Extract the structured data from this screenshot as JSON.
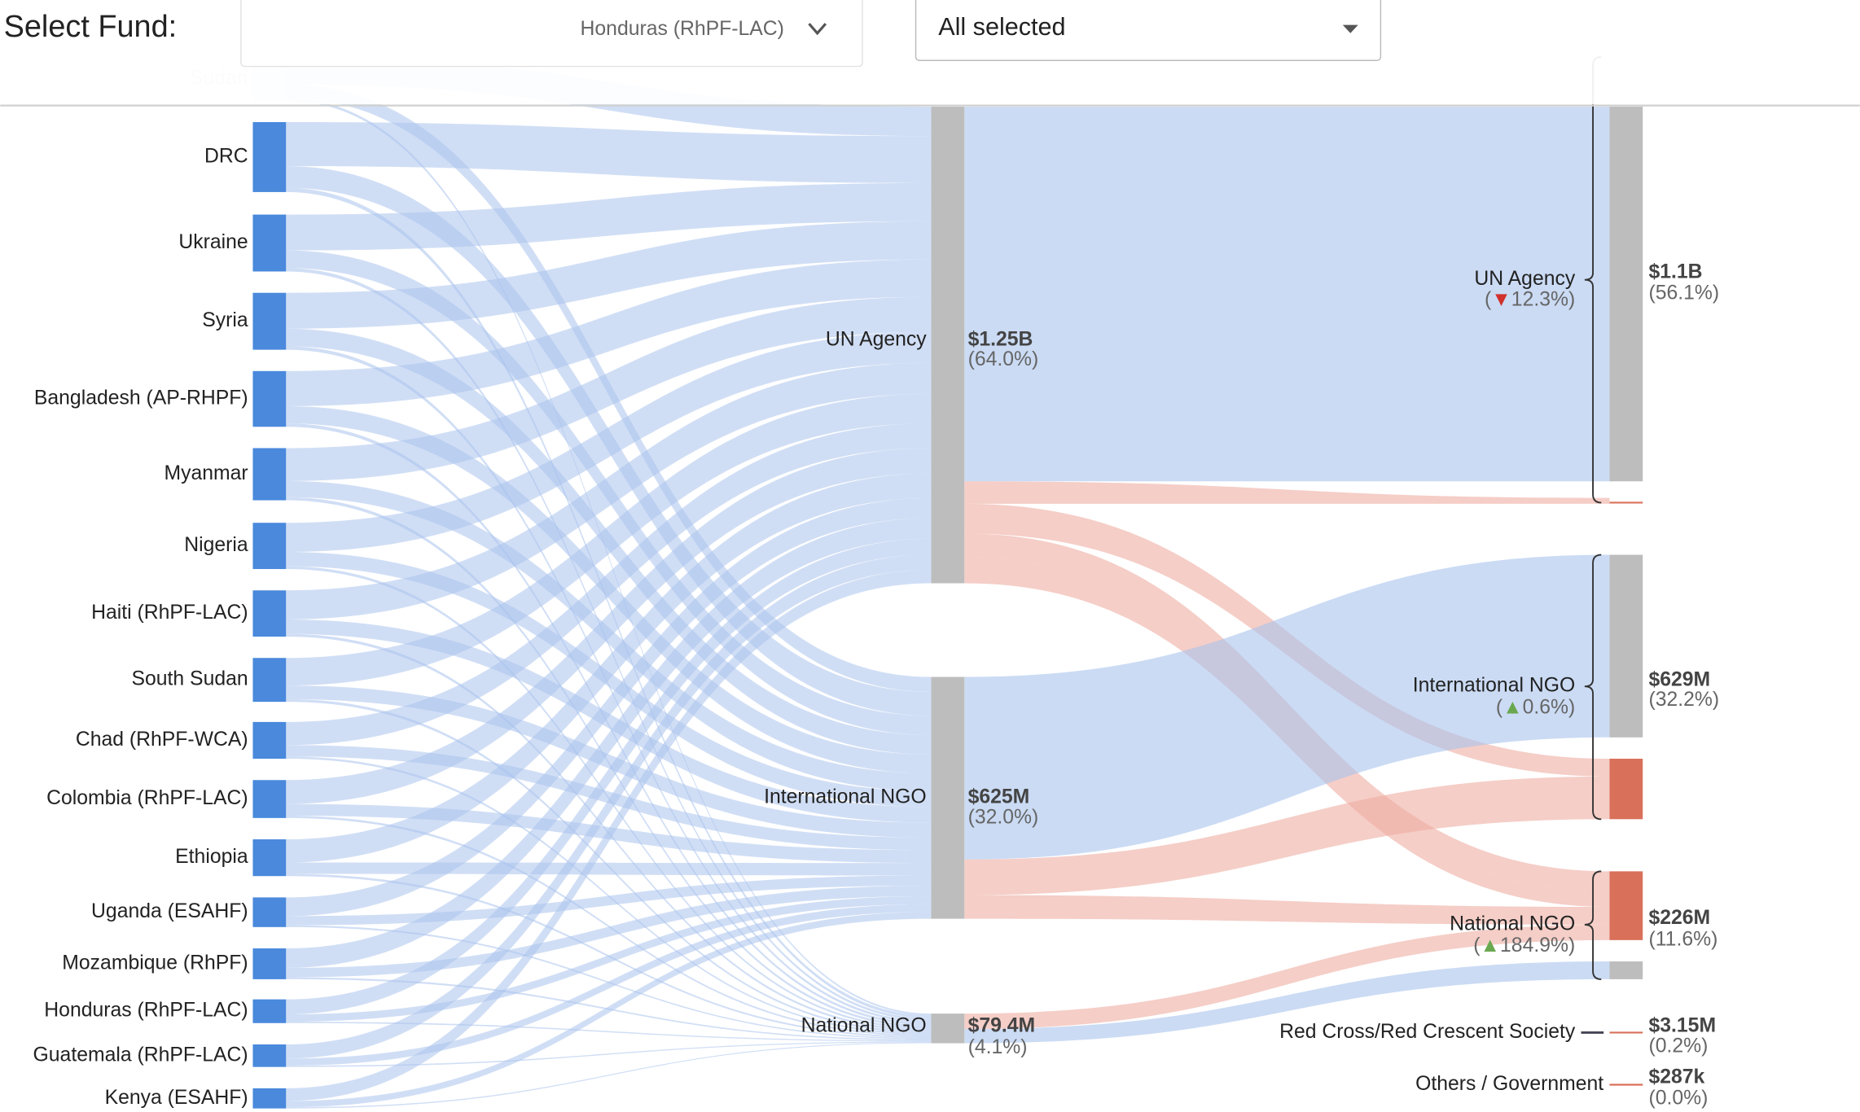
{
  "header": {
    "select_fund_label": "Select Fund:",
    "fund_dropdown": "Honduras (RhPF-LAC)",
    "status_dropdown": "All selected"
  },
  "sources": [
    "Sudan",
    "DRC",
    "Ukraine",
    "Syria",
    "Bangladesh (AP-RHPF)",
    "Myanmar",
    "Nigeria",
    "Haiti (RhPF-LAC)",
    "South Sudan",
    "Chad (RhPF-WCA)",
    "Colombia (RhPF-LAC)",
    "Ethiopia",
    "Uganda (ESAHF)",
    "Mozambique (RhPF)",
    "Honduras (RhPF-LAC)",
    "Guatemala (RhPF-LAC)",
    "Kenya (ESAHF)"
  ],
  "middle": [
    {
      "label": "UN Agency",
      "amount": "$1.25B",
      "share": "(64.0%)"
    },
    {
      "label": "International NGO",
      "amount": "$625M",
      "share": "(32.0%)"
    },
    {
      "label": "National NGO",
      "amount": "$79.4M",
      "share": "(4.1%)"
    }
  ],
  "right": [
    {
      "label": "UN Agency",
      "change": [
        "(",
        "▼",
        "12.3%)"
      ],
      "amount": "$1.1B",
      "share": "(56.1%)"
    },
    {
      "label": "International NGO",
      "change": [
        "(",
        "▲",
        "0.6%)"
      ],
      "amount": "$629M",
      "share": "(32.2%)"
    },
    {
      "label": "National NGO",
      "change": [
        "(",
        "▲",
        "184.9%)"
      ],
      "amount": "$226M",
      "share": "(11.6%)"
    },
    {
      "label": "Red Cross/Red Crescent Society",
      "amount": "$3.15M",
      "share": "(0.2%)"
    },
    {
      "label": "Others / Government",
      "amount": "$287k",
      "share": "(0.0%)"
    }
  ]
}
